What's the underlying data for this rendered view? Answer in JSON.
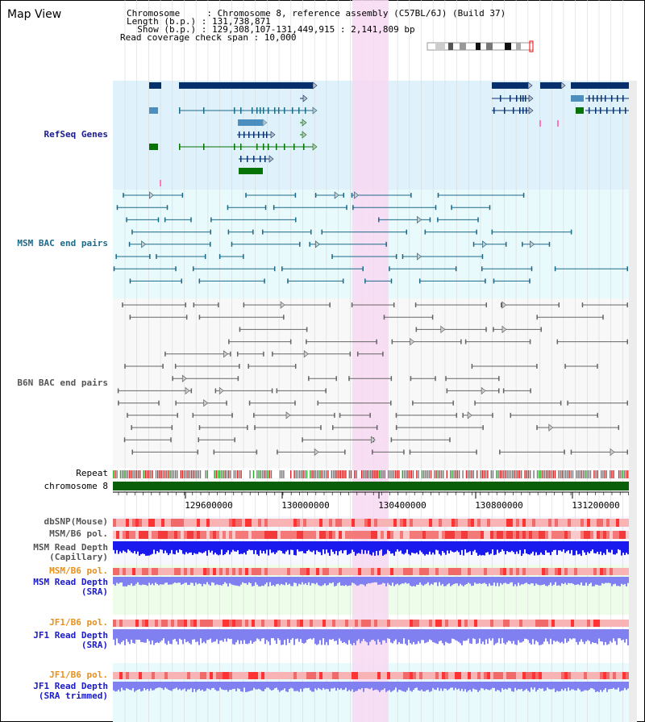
{
  "window": {
    "title": "Map View"
  },
  "header": {
    "chromosome_label": "Chromosome     : Chromosome 8, reference assembly (C57BL/6J) (Build 37)",
    "length_label": "Length (b.p.) : 131,738,871",
    "show_label": "  Show (b.p.) : 129,308,107-131,449,915 : 2,141,809 bp",
    "coverage_label": "Read coverage check span : 10,000"
  },
  "tracks": {
    "refseq": "RefSeq Genes",
    "msm_bac": "MSM BAC end pairs",
    "b6n_bac": "B6N BAC end pairs",
    "repeat": "Repeat",
    "chromosome": "chromosome 8",
    "dbsnp": "dbSNP(Mouse)",
    "msm_b6_pol_1": "MSM/B6 pol.",
    "msm_depth_cap_1": "MSM Read Depth",
    "msm_depth_cap_2": "(Capillary)",
    "msm_b6_pol_2": "MSM/B6 pol.",
    "msm_depth_sra_1": "MSM Read Depth",
    "msm_depth_sra_2": "(SRA)",
    "jf1_b6_pol_1": "JF1/B6 pol.",
    "jf1_depth_sra_1": "JF1 Read Depth",
    "jf1_depth_sra_2": "(SRA)",
    "jf1_b6_pol_2": "JF1/B6 pol.",
    "jf1_depth_trim_1": "JF1 Read Depth",
    "jf1_depth_trim_2": "(SRA trimmed)"
  },
  "axis": {
    "ticks": [
      "129600000",
      "130000000",
      "130400000",
      "130800000",
      "131200000"
    ]
  },
  "colors": {
    "refseq_bg": "#dff2fb",
    "msm_bg": "#e8fafc",
    "highlight": "#f8d9f2",
    "gene_dark": "#06306c",
    "gene_mid": "#4c8fbe",
    "gene_green": "#067306",
    "msm_line": "#1c6a8a",
    "b6n_line": "#666666",
    "chrom_bar": "#0a5f0a"
  }
}
